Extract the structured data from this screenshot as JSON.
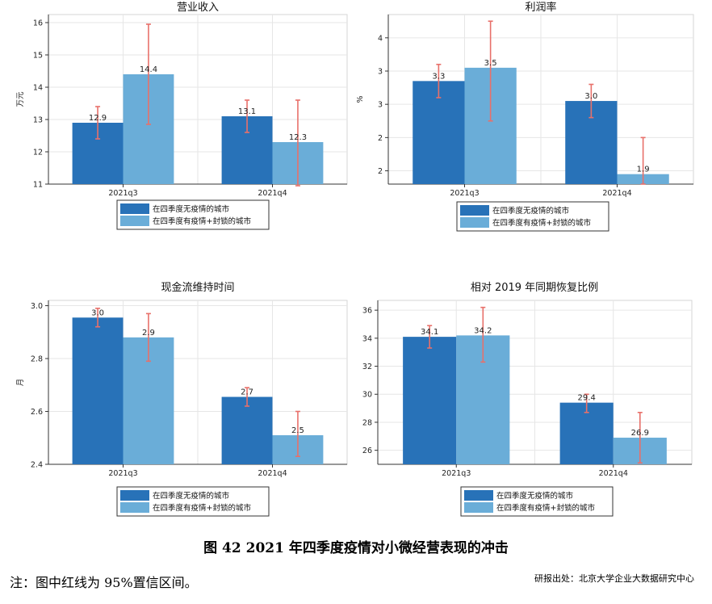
{
  "chart_data": [
    {
      "type": "bar",
      "title": "营业收入",
      "ylabel": "万元",
      "categories": [
        "2021q3",
        "2021q4"
      ],
      "ylim": [
        11,
        16.25
      ],
      "yticks": [
        11,
        12,
        13,
        14,
        15,
        16
      ],
      "yticklabels": [
        "11",
        "12",
        "13",
        "14",
        "15",
        "16"
      ],
      "series": [
        {
          "name": "在四季度无疫情的城市",
          "color": "#2872b8",
          "values": [
            12.9,
            13.1
          ],
          "labels": [
            "12.9",
            "13.1"
          ],
          "ci_low": [
            12.4,
            12.6
          ],
          "ci_high": [
            13.4,
            13.6
          ]
        },
        {
          "name": "在四季度有疫情+封锁的城市",
          "color": "#6aadd8",
          "values": [
            14.4,
            12.3
          ],
          "labels": [
            "14.4",
            "12.3"
          ],
          "ci_low": [
            12.85,
            10.95
          ],
          "ci_high": [
            15.95,
            13.6
          ]
        }
      ]
    },
    {
      "type": "bar",
      "title": "利润率",
      "ylabel": "%",
      "categories": [
        "2021q3",
        "2021q4"
      ],
      "ylim": [
        1.75,
        4.3
      ],
      "yticks": [
        1.95,
        2.45,
        2.95,
        3.45,
        3.95
      ],
      "yticklabels": [
        "2",
        "2",
        "3",
        "3",
        "4"
      ],
      "series": [
        {
          "name": "在四季度无疫情的城市",
          "color": "#2872b8",
          "values": [
            3.3,
            3.0
          ],
          "labels": [
            "3.3",
            "3.0"
          ],
          "ci_low": [
            3.05,
            2.75
          ],
          "ci_high": [
            3.55,
            3.25
          ]
        },
        {
          "name": "在四季度有疫情+封锁的城市",
          "color": "#6aadd8",
          "values": [
            3.5,
            1.9
          ],
          "labels": [
            "3.5",
            "1.9"
          ],
          "ci_low": [
            2.7,
            1.75
          ],
          "ci_high": [
            4.2,
            2.45
          ]
        }
      ]
    },
    {
      "type": "bar",
      "title": "现金流维持时间",
      "ylabel": "月",
      "categories": [
        "2021q3",
        "2021q4"
      ],
      "ylim": [
        2.4,
        3.02
      ],
      "yticks": [
        2.4,
        2.6,
        2.8,
        3.0
      ],
      "yticklabels": [
        "2.4",
        "2.6",
        "2.8",
        "3.0"
      ],
      "series": [
        {
          "name": "在四季度无疫情的城市",
          "color": "#2872b8",
          "values": [
            2.955,
            2.655
          ],
          "labels": [
            "3.0",
            "2.7"
          ],
          "ci_low": [
            2.92,
            2.62
          ],
          "ci_high": [
            2.99,
            2.69
          ]
        },
        {
          "name": "在四季度有疫情+封锁的城市",
          "color": "#6aadd8",
          "values": [
            2.88,
            2.51
          ],
          "labels": [
            "2.9",
            "2.5"
          ],
          "ci_low": [
            2.79,
            2.43
          ],
          "ci_high": [
            2.97,
            2.6
          ]
        }
      ]
    },
    {
      "type": "bar",
      "title": "相对 2019 年同期恢复比例",
      "ylabel": "%",
      "categories": [
        "2021q3",
        "2021q4"
      ],
      "ylim": [
        25,
        36.7
      ],
      "yticks": [
        26,
        28,
        30,
        32,
        34,
        36
      ],
      "yticklabels": [
        "26",
        "28",
        "30",
        "32",
        "34",
        "36"
      ],
      "series": [
        {
          "name": "在四季度无疫情的城市",
          "color": "#2872b8",
          "values": [
            34.1,
            29.4
          ],
          "labels": [
            "34.1",
            "29.4"
          ],
          "ci_low": [
            33.3,
            28.7
          ],
          "ci_high": [
            34.9,
            30.0
          ]
        },
        {
          "name": "在四季度有疫情+封锁的城市",
          "color": "#6aadd8",
          "values": [
            34.2,
            26.9
          ],
          "labels": [
            "34.2",
            "26.9"
          ],
          "ci_low": [
            32.3,
            25.1
          ],
          "ci_high": [
            36.2,
            28.7
          ]
        }
      ]
    }
  ],
  "figure_caption": "图  42 2021 年四季度疫情对小微经营表现的冲击",
  "note": "注：图中红线为 95%置信区间。",
  "source": "研报出处：北京大学企业大数据研究中心",
  "ci_color": "#e8706a",
  "grid_color": "#e6e6e6"
}
